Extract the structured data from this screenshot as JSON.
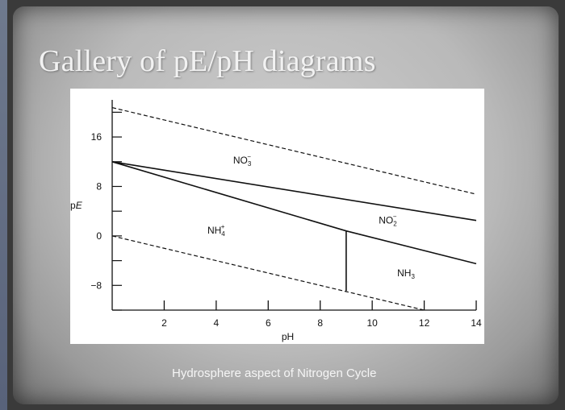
{
  "slide": {
    "title": "Gallery of pE/pH diagrams",
    "caption": "Hydrosphere aspect of Nitrogen Cycle"
  },
  "chart_data": {
    "type": "line",
    "xlabel": "pH",
    "ylabel": "pE",
    "xlim": [
      0,
      14
    ],
    "ylim": [
      -12,
      22
    ],
    "x_ticks": [
      2,
      4,
      6,
      8,
      10,
      12,
      14
    ],
    "y_ticks": [
      16,
      8,
      0,
      -8
    ],
    "y_tick_labels": [
      "16",
      "8",
      "0",
      "−8"
    ],
    "grid": false,
    "series": [
      {
        "style": "dashed",
        "points": [
          [
            0,
            20.75
          ],
          [
            14,
            6.75
          ]
        ]
      },
      {
        "style": "solid",
        "points": [
          [
            0,
            12
          ],
          [
            14,
            2.5
          ]
        ]
      },
      {
        "style": "solid",
        "points": [
          [
            0,
            12
          ],
          [
            9,
            0.8
          ],
          [
            14,
            -4.5
          ]
        ]
      },
      {
        "style": "solid",
        "points": [
          [
            9,
            0.8
          ],
          [
            9,
            -8.9
          ]
        ]
      },
      {
        "style": "dashed",
        "points": [
          [
            0,
            0
          ],
          [
            12,
            -12
          ]
        ]
      }
    ],
    "regions": [
      {
        "base": "NO",
        "sub": "3",
        "sup": "−",
        "x": 5.0,
        "y": 11.7
      },
      {
        "base": "NO",
        "sub": "2",
        "sup": "−",
        "x": 10.6,
        "y": 2.0
      },
      {
        "base": "NH",
        "sub": "4",
        "sup": "+",
        "x": 4.0,
        "y": 0.4
      },
      {
        "base": "NH",
        "sub": "3",
        "sup": "",
        "x": 11.3,
        "y": -6.5
      }
    ]
  }
}
